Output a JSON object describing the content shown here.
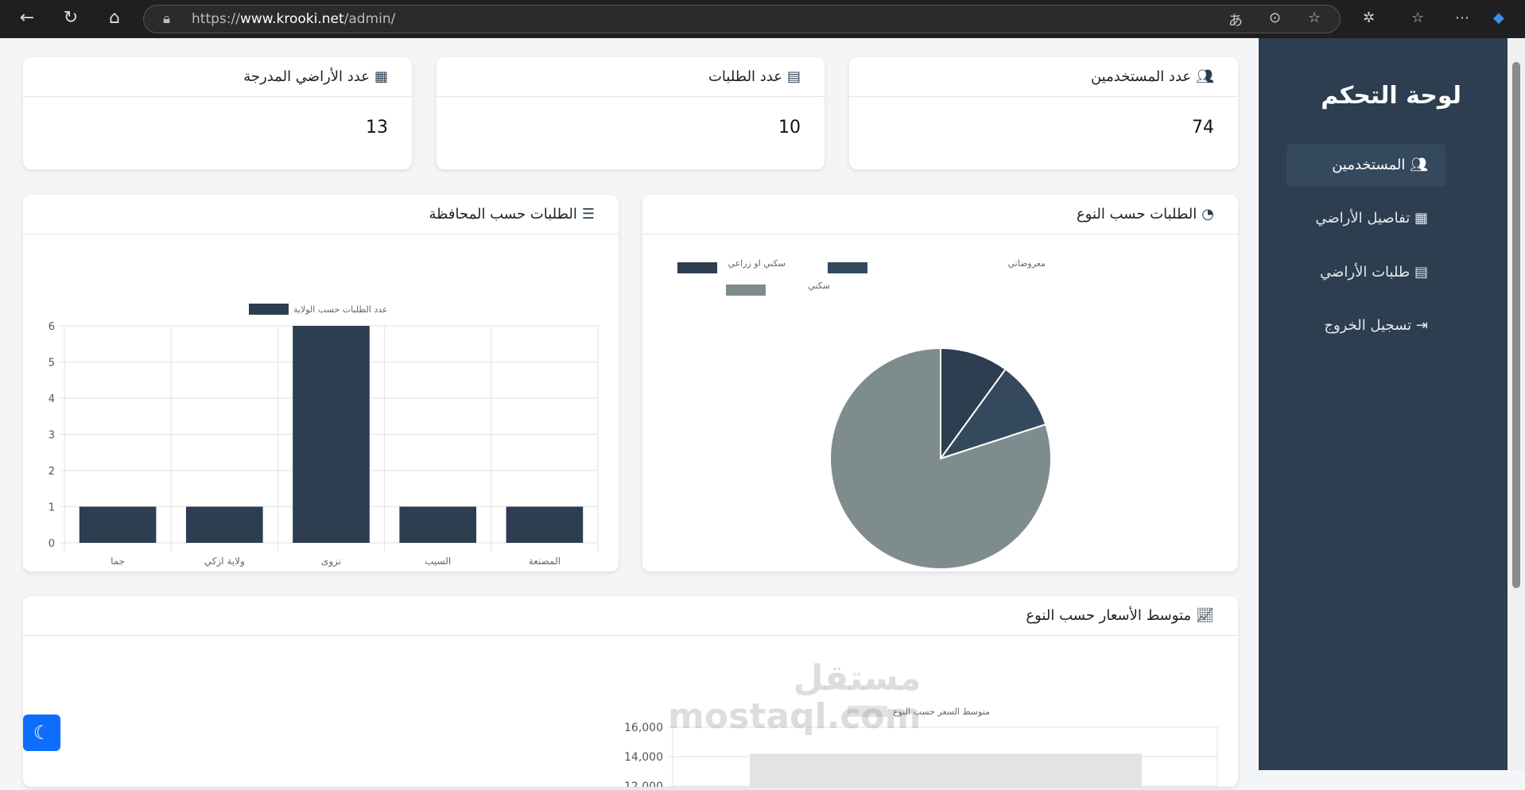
{
  "browser": {
    "url_prefix": "https://",
    "url_host": "www.krooki.net",
    "url_path": "/admin/"
  },
  "sidebar": {
    "title": "لوحة التحكم",
    "items": [
      {
        "label": "المستخدمين",
        "icon": "users-icon",
        "active": true
      },
      {
        "label": "تفاصيل الأراضي",
        "icon": "map-icon",
        "active": false
      },
      {
        "label": "طلبات الأراضي",
        "icon": "clipboard-icon",
        "active": false
      },
      {
        "label": "تسجيل الخروج",
        "icon": "sign-out-icon",
        "active": false
      }
    ]
  },
  "stats": [
    {
      "label": "عدد المستخدمين",
      "value": "74",
      "icon": "users-icon"
    },
    {
      "label": "عدد الطلبات",
      "value": "10",
      "icon": "clipboard-icon"
    },
    {
      "label": "عدد الأراضي المدرجة",
      "value": "13",
      "icon": "map-icon"
    }
  ],
  "panels": {
    "by_type": "الطلبات حسب النوع",
    "by_governorate": "الطلبات حسب المحافظة",
    "avg_price": "متوسط الأسعار حسب النوع"
  },
  "watermark": {
    "ar": "مستقل",
    "en": "mostaql.com"
  },
  "chart_data": [
    {
      "type": "bar",
      "legend": "عدد الطلبات حسب الولاية",
      "categories": [
        "جما",
        "ولاية ازكي",
        "نزوى",
        "السيب",
        "المصنعة"
      ],
      "values": [
        1,
        1,
        6,
        1,
        1
      ],
      "ylim": [
        0,
        6
      ],
      "yticks": [
        0,
        1,
        2,
        3,
        4,
        5,
        6
      ],
      "color": "#2c3e50",
      "grid": true,
      "legend_position": "top"
    },
    {
      "type": "pie",
      "categories": [
        "سكني او زراعي",
        "معروضاتي",
        "سكني"
      ],
      "values": [
        1,
        1,
        8
      ],
      "colors": [
        "#2c3e50",
        "#34495e",
        "#7f8c8d"
      ],
      "legend_position": "top"
    },
    {
      "type": "bar",
      "legend": "متوسط السعر حسب النوع",
      "values": [
        14200
      ],
      "yticks": [
        "16,000",
        "14,000",
        "12,000"
      ],
      "color": "#e3e3e3",
      "grid": true,
      "legend_position": "top"
    }
  ]
}
